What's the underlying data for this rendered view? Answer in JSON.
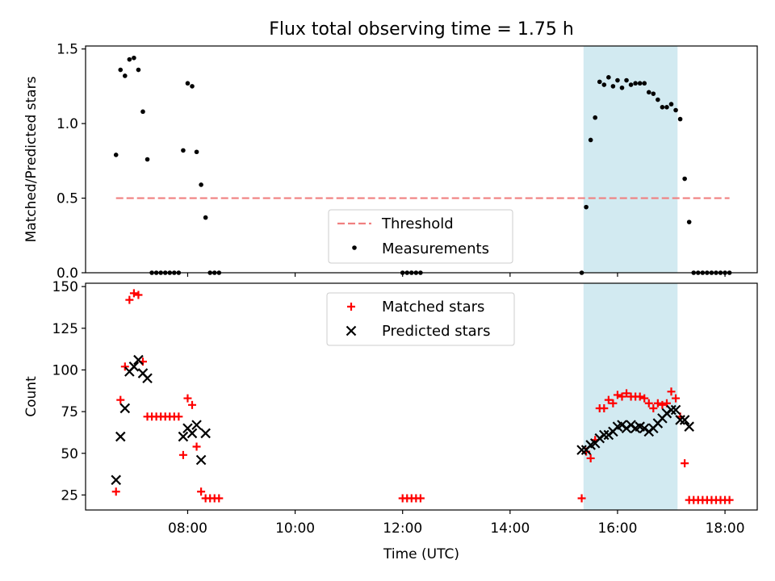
{
  "title": "Flux total observing time = 1.75 h",
  "chart_data": [
    {
      "type": "scatter",
      "panel": "top",
      "ylabel": "Matched/Predicted stars",
      "ylim": [
        0,
        1.52
      ],
      "xlim": [
        "06:06",
        "18:36"
      ],
      "yticks": [
        "0.0",
        "0.5",
        "1.0",
        "1.5"
      ],
      "yticks_values": [
        0,
        0.5,
        1.0,
        1.5
      ],
      "threshold": {
        "name": "Threshold",
        "value": 0.5,
        "x_range": [
          "06:40",
          "18:05"
        ],
        "color": "#f08080",
        "style": "dashed"
      },
      "highlight_span": {
        "x_range": [
          "15:22",
          "17:07"
        ],
        "color": "#add8e6"
      },
      "series": [
        {
          "name": "Measurements",
          "color": "#000000",
          "marker": "dot",
          "points": [
            [
              "06:40",
              0.79
            ],
            [
              "06:45",
              1.36
            ],
            [
              "06:50",
              1.32
            ],
            [
              "06:55",
              1.43
            ],
            [
              "07:00",
              1.44
            ],
            [
              "07:05",
              1.36
            ],
            [
              "07:10",
              1.08
            ],
            [
              "07:15",
              0.76
            ],
            [
              "07:20",
              0
            ],
            [
              "07:25",
              0
            ],
            [
              "07:30",
              0
            ],
            [
              "07:35",
              0
            ],
            [
              "07:40",
              0
            ],
            [
              "07:45",
              0
            ],
            [
              "07:50",
              0
            ],
            [
              "07:55",
              0.82
            ],
            [
              "08:00",
              1.27
            ],
            [
              "08:05",
              1.25
            ],
            [
              "08:10",
              0.81
            ],
            [
              "08:15",
              0.59
            ],
            [
              "08:20",
              0.37
            ],
            [
              "08:25",
              0
            ],
            [
              "08:30",
              0
            ],
            [
              "08:35",
              0
            ],
            [
              "12:00",
              0
            ],
            [
              "12:05",
              0
            ],
            [
              "12:10",
              0
            ],
            [
              "12:15",
              0
            ],
            [
              "12:20",
              0
            ],
            [
              "15:20",
              0
            ],
            [
              "15:25",
              0.44
            ],
            [
              "15:30",
              0.89
            ],
            [
              "15:35",
              1.04
            ],
            [
              "15:40",
              1.28
            ],
            [
              "15:45",
              1.26
            ],
            [
              "15:50",
              1.31
            ],
            [
              "15:55",
              1.25
            ],
            [
              "16:00",
              1.29
            ],
            [
              "16:05",
              1.24
            ],
            [
              "16:10",
              1.29
            ],
            [
              "16:15",
              1.26
            ],
            [
              "16:20",
              1.27
            ],
            [
              "16:25",
              1.27
            ],
            [
              "16:30",
              1.27
            ],
            [
              "16:35",
              1.21
            ],
            [
              "16:40",
              1.2
            ],
            [
              "16:45",
              1.16
            ],
            [
              "16:50",
              1.11
            ],
            [
              "16:55",
              1.11
            ],
            [
              "17:00",
              1.13
            ],
            [
              "17:05",
              1.09
            ],
            [
              "17:10",
              1.03
            ],
            [
              "17:15",
              0.63
            ],
            [
              "17:20",
              0.34
            ],
            [
              "17:25",
              0
            ],
            [
              "17:30",
              0
            ],
            [
              "17:35",
              0
            ],
            [
              "17:40",
              0
            ],
            [
              "17:45",
              0
            ],
            [
              "17:50",
              0
            ],
            [
              "17:55",
              0
            ],
            [
              "18:00",
              0
            ],
            [
              "18:05",
              0
            ]
          ]
        }
      ],
      "legend": {
        "placement": "lower-center",
        "entries": [
          "Threshold",
          "Measurements"
        ]
      }
    },
    {
      "type": "scatter",
      "panel": "bottom",
      "ylabel": "Count",
      "xlabel": "Time (UTC)",
      "ylim": [
        16,
        152
      ],
      "xlim": [
        "06:06",
        "18:36"
      ],
      "yticks": [
        "25",
        "50",
        "75",
        "100",
        "125",
        "150"
      ],
      "yticks_values": [
        25,
        50,
        75,
        100,
        125,
        150
      ],
      "xticks": [
        "08:00",
        "10:00",
        "12:00",
        "14:00",
        "16:00",
        "18:00"
      ],
      "highlight_span": {
        "x_range": [
          "15:22",
          "17:07"
        ],
        "color": "#add8e6"
      },
      "series": [
        {
          "name": "Matched stars",
          "color": "#ff0000",
          "marker": "plus",
          "points": [
            [
              "06:40",
              27
            ],
            [
              "06:45",
              82
            ],
            [
              "06:50",
              102
            ],
            [
              "06:55",
              142
            ],
            [
              "07:00",
              146
            ],
            [
              "07:05",
              145
            ],
            [
              "07:10",
              105
            ],
            [
              "07:15",
              72
            ],
            [
              "07:20",
              72
            ],
            [
              "07:25",
              72
            ],
            [
              "07:30",
              72
            ],
            [
              "07:35",
              72
            ],
            [
              "07:40",
              72
            ],
            [
              "07:45",
              72
            ],
            [
              "07:50",
              72
            ],
            [
              "07:55",
              49
            ],
            [
              "08:00",
              83
            ],
            [
              "08:05",
              79
            ],
            [
              "08:10",
              54
            ],
            [
              "08:15",
              27
            ],
            [
              "08:20",
              23
            ],
            [
              "08:25",
              23
            ],
            [
              "08:30",
              23
            ],
            [
              "08:35",
              23
            ],
            [
              "12:00",
              23
            ],
            [
              "12:05",
              23
            ],
            [
              "12:10",
              23
            ],
            [
              "12:15",
              23
            ],
            [
              "12:20",
              23
            ],
            [
              "15:20",
              23
            ],
            [
              "15:25",
              51
            ],
            [
              "15:30",
              47
            ],
            [
              "15:35",
              58
            ],
            [
              "15:40",
              77
            ],
            [
              "15:45",
              77
            ],
            [
              "15:50",
              82
            ],
            [
              "15:55",
              80
            ],
            [
              "16:00",
              85
            ],
            [
              "16:05",
              84
            ],
            [
              "16:10",
              86
            ],
            [
              "16:15",
              84
            ],
            [
              "16:20",
              84
            ],
            [
              "16:25",
              84
            ],
            [
              "16:30",
              83
            ],
            [
              "16:35",
              80
            ],
            [
              "16:40",
              77
            ],
            [
              "16:45",
              80
            ],
            [
              "16:50",
              79
            ],
            [
              "16:55",
              80
            ],
            [
              "17:00",
              87
            ],
            [
              "17:05",
              83
            ],
            [
              "17:10",
              72
            ],
            [
              "17:15",
              44
            ],
            [
              "17:20",
              22
            ],
            [
              "17:25",
              22
            ],
            [
              "17:30",
              22
            ],
            [
              "17:35",
              22
            ],
            [
              "17:40",
              22
            ],
            [
              "17:45",
              22
            ],
            [
              "17:50",
              22
            ],
            [
              "17:55",
              22
            ],
            [
              "18:00",
              22
            ],
            [
              "18:05",
              22
            ]
          ]
        },
        {
          "name": "Predicted stars",
          "color": "#000000",
          "marker": "x",
          "points": [
            [
              "06:40",
              34
            ],
            [
              "06:45",
              60
            ],
            [
              "06:50",
              77
            ],
            [
              "06:55",
              99
            ],
            [
              "07:00",
              102
            ],
            [
              "07:05",
              106
            ],
            [
              "07:10",
              98
            ],
            [
              "07:15",
              95
            ],
            [
              "07:55",
              60
            ],
            [
              "08:00",
              65
            ],
            [
              "08:05",
              62
            ],
            [
              "08:10",
              67
            ],
            [
              "08:15",
              46
            ],
            [
              "08:20",
              62
            ],
            [
              "15:20",
              52
            ],
            [
              "15:25",
              52
            ],
            [
              "15:30",
              55
            ],
            [
              "15:35",
              56
            ],
            [
              "15:40",
              59
            ],
            [
              "15:45",
              61
            ],
            [
              "15:50",
              61
            ],
            [
              "15:55",
              63
            ],
            [
              "16:00",
              66
            ],
            [
              "16:05",
              67
            ],
            [
              "16:10",
              65
            ],
            [
              "16:15",
              67
            ],
            [
              "16:20",
              65
            ],
            [
              "16:25",
              66
            ],
            [
              "16:30",
              65
            ],
            [
              "16:35",
              63
            ],
            [
              "16:40",
              65
            ],
            [
              "16:45",
              68
            ],
            [
              "16:50",
              71
            ],
            [
              "16:55",
              74
            ],
            [
              "17:00",
              76
            ],
            [
              "17:05",
              76
            ],
            [
              "17:10",
              70
            ],
            [
              "17:15",
              70
            ],
            [
              "17:20",
              66
            ]
          ]
        }
      ],
      "legend": {
        "placement": "upper-center",
        "entries": [
          "Matched stars",
          "Predicted stars"
        ]
      }
    }
  ]
}
